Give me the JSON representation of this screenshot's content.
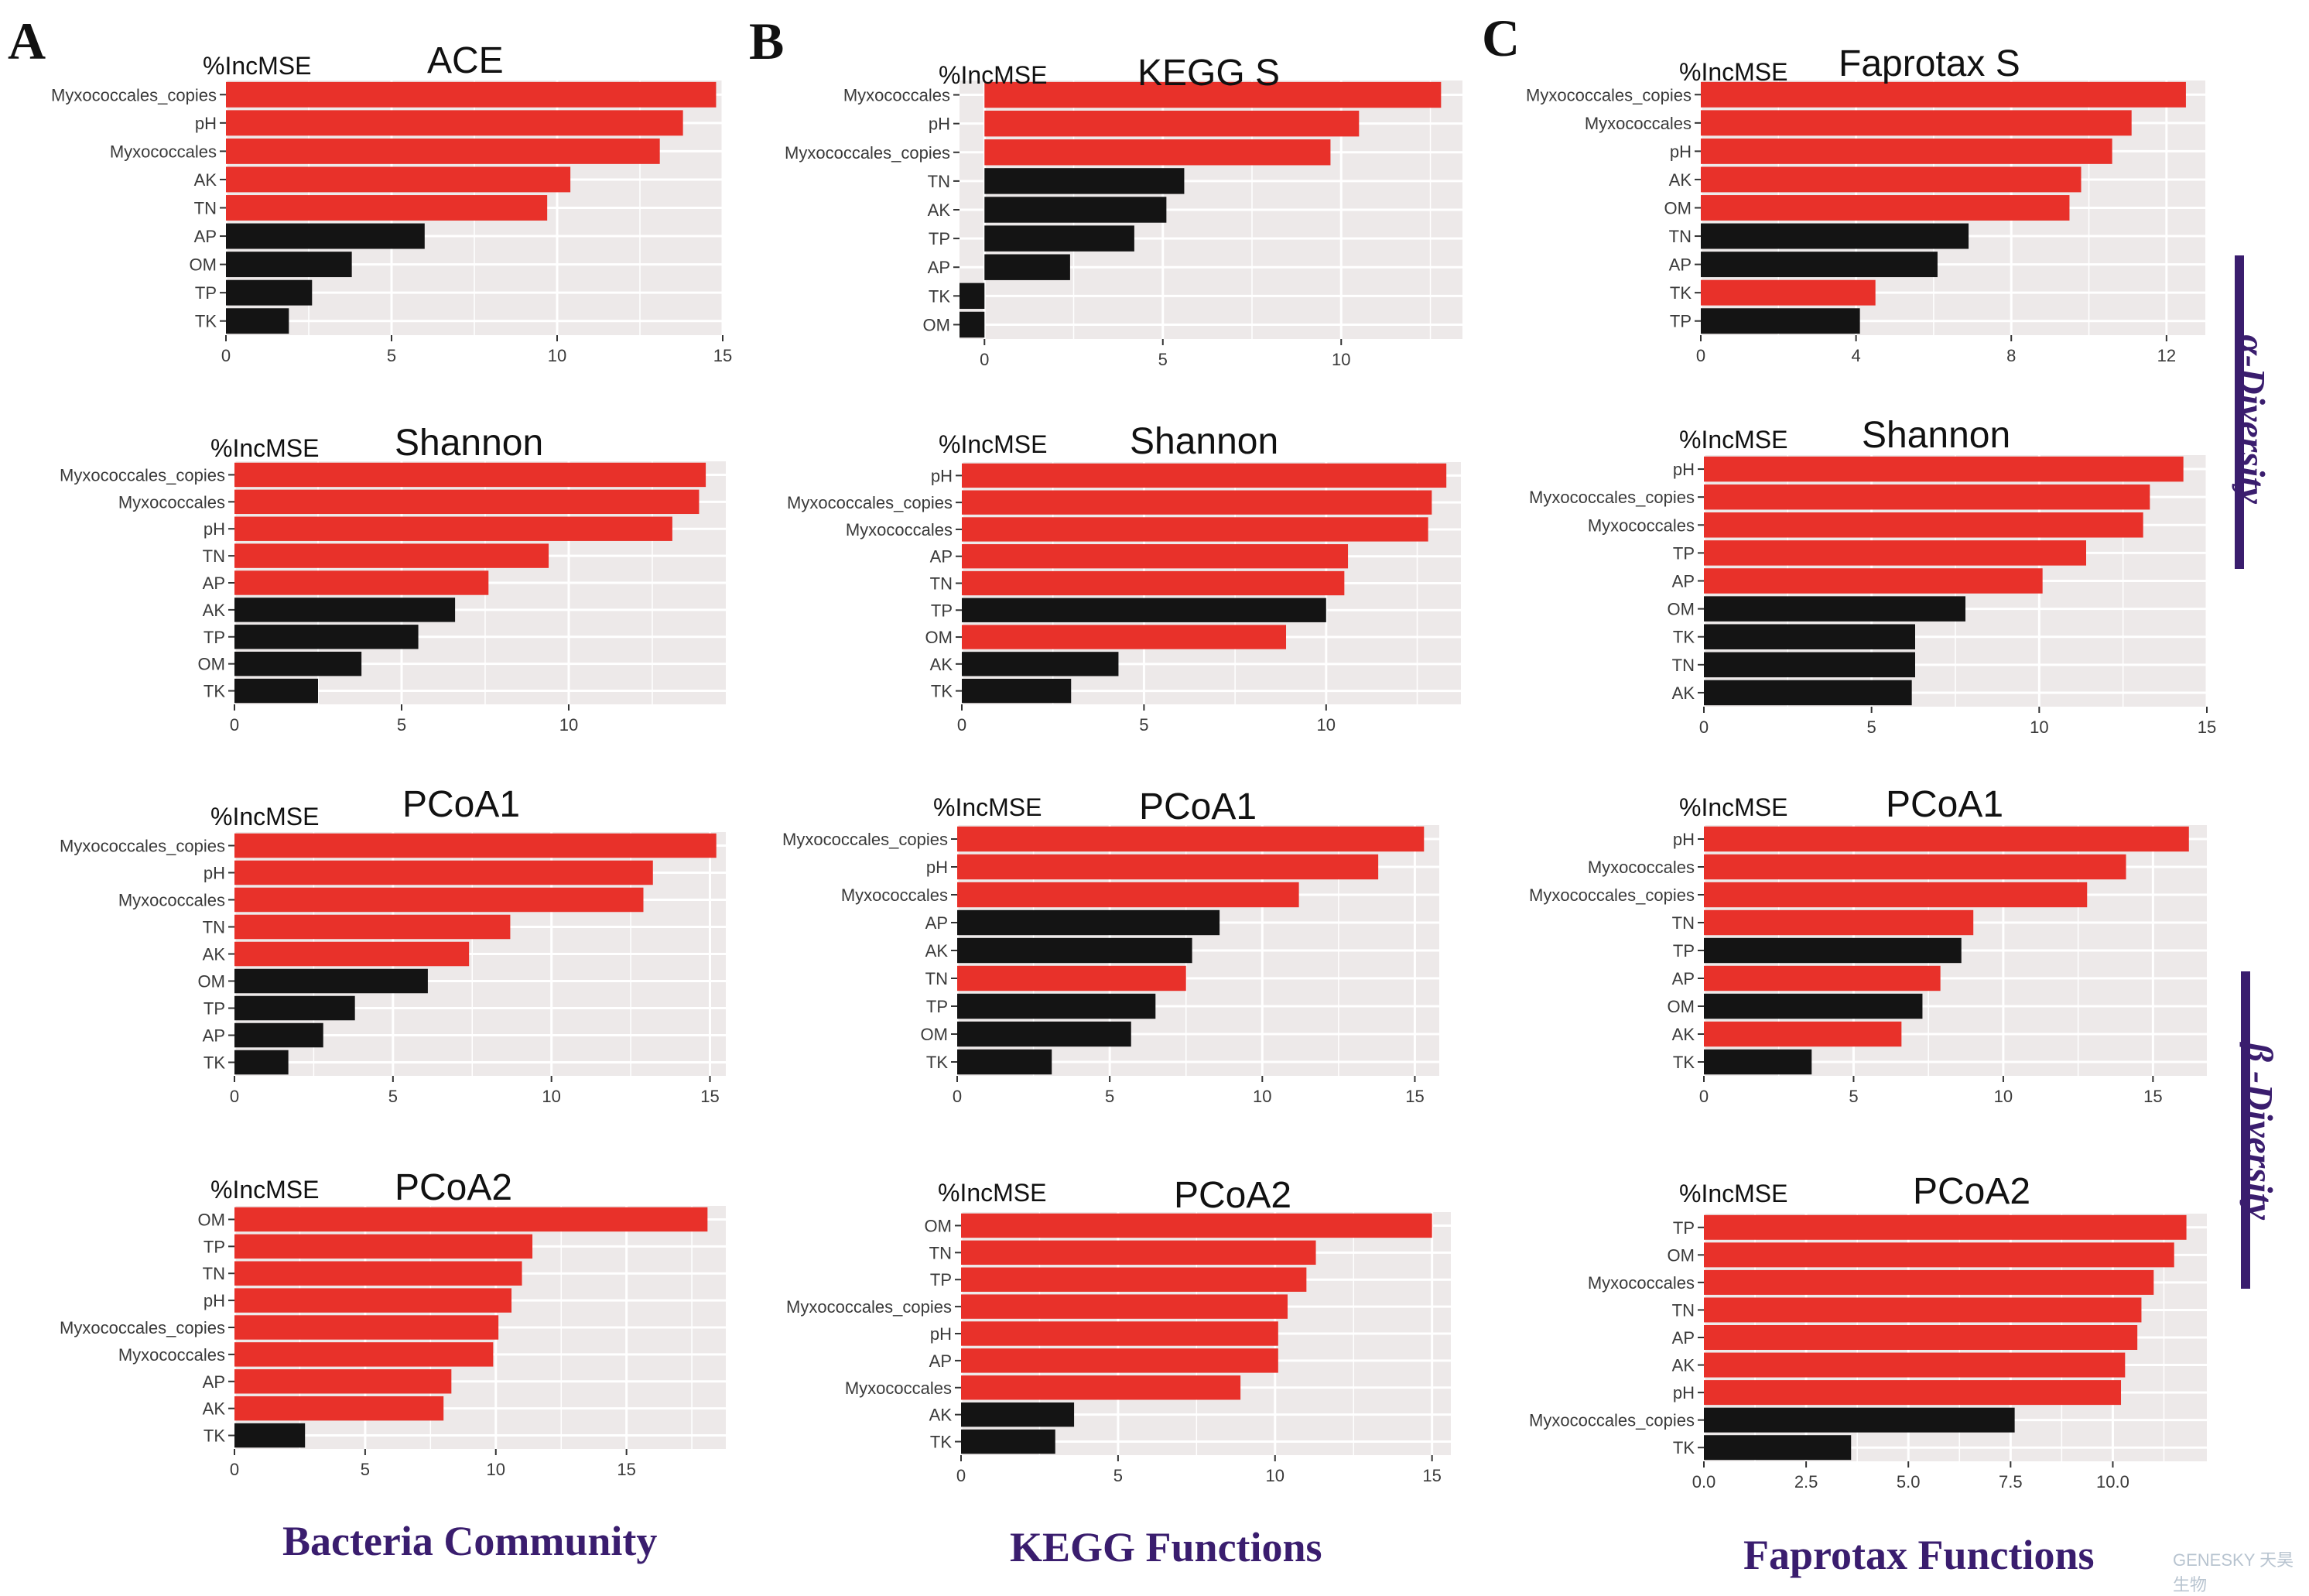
{
  "panel_letters": [
    "A",
    "B",
    "C"
  ],
  "column_titles": [
    "Bacteria Community",
    "KEGG Functions",
    "Faprotax Functions"
  ],
  "side_labels": [
    "α-Diversity",
    "β -Diversity"
  ],
  "watermark": "GENESKY 天昊生物",
  "colors": {
    "red": "#e8312a",
    "black": "#141414",
    "panel_bg": "#ede9e9",
    "grid": "#ffffff",
    "accent": "#3a1d6e"
  },
  "chart_data": [
    {
      "id": "A-ACE",
      "type": "bar",
      "orientation": "horizontal",
      "title": "ACE",
      "ylabel": "%IncMSE",
      "xlim": [
        0,
        15
      ],
      "xticks": [
        0,
        5,
        10,
        15
      ],
      "categories": [
        "Myxococcales_copies",
        "pH",
        "Myxococcales",
        "AK",
        "TN",
        "AP",
        "OM",
        "TP",
        "TK"
      ],
      "values": [
        14.8,
        13.8,
        13.1,
        10.4,
        9.7,
        6.0,
        3.8,
        2.6,
        1.9
      ],
      "significant": [
        true,
        true,
        true,
        true,
        true,
        false,
        false,
        false,
        false
      ]
    },
    {
      "id": "B-KEGG",
      "type": "bar",
      "orientation": "horizontal",
      "title": "KEGG S",
      "ylabel": "%IncMSE",
      "xlim": [
        -0.7,
        13.4
      ],
      "xticks": [
        0,
        5,
        10
      ],
      "categories": [
        "Myxococcales",
        "pH",
        "Myxococcales_copies",
        "TN",
        "AK",
        "TP",
        "AP",
        "TK",
        "OM"
      ],
      "values": [
        12.8,
        10.5,
        9.7,
        5.6,
        5.1,
        4.2,
        2.4,
        -0.7,
        -0.7
      ],
      "significant": [
        true,
        true,
        true,
        false,
        false,
        false,
        false,
        false,
        false
      ]
    },
    {
      "id": "C-Faprotax",
      "type": "bar",
      "orientation": "horizontal",
      "title": "Faprotax S",
      "ylabel": "%IncMSE",
      "xlim": [
        0,
        13
      ],
      "xticks": [
        0,
        4,
        8,
        12
      ],
      "categories": [
        "Myxococcales_copies",
        "Myxococcales",
        "pH",
        "AK",
        "OM",
        "TN",
        "AP",
        "TK",
        "TP"
      ],
      "values": [
        12.5,
        11.1,
        10.6,
        9.8,
        9.5,
        6.9,
        6.1,
        4.5,
        4.1
      ],
      "significant": [
        true,
        true,
        true,
        true,
        true,
        false,
        false,
        true,
        false
      ]
    },
    {
      "id": "A-Shannon",
      "type": "bar",
      "orientation": "horizontal",
      "title": "Shannon",
      "ylabel": "%IncMSE",
      "xlim": [
        0,
        14.7
      ],
      "xticks": [
        0,
        5,
        10
      ],
      "categories": [
        "Myxococcales_copies",
        "Myxococcales",
        "pH",
        "TN",
        "AP",
        "AK",
        "TP",
        "OM",
        "TK"
      ],
      "values": [
        14.1,
        13.9,
        13.1,
        9.4,
        7.6,
        6.6,
        5.5,
        3.8,
        2.5
      ],
      "significant": [
        true,
        true,
        true,
        true,
        true,
        false,
        false,
        false,
        false
      ]
    },
    {
      "id": "B-Shannon",
      "type": "bar",
      "orientation": "horizontal",
      "title": "Shannon",
      "ylabel": "%IncMSE",
      "xlim": [
        0,
        13.7
      ],
      "xticks": [
        0,
        5,
        10
      ],
      "categories": [
        "pH",
        "Myxococcales_copies",
        "Myxococcales",
        "AP",
        "TN",
        "TP",
        "OM",
        "AK",
        "TK"
      ],
      "values": [
        13.3,
        12.9,
        12.8,
        10.6,
        10.5,
        10.0,
        8.9,
        4.3,
        3.0
      ],
      "significant": [
        true,
        true,
        true,
        true,
        true,
        false,
        true,
        false,
        false
      ]
    },
    {
      "id": "C-Shannon",
      "type": "bar",
      "orientation": "horizontal",
      "title": "Shannon",
      "ylabel": "%IncMSE",
      "xlim": [
        0,
        15
      ],
      "xticks": [
        0,
        5,
        10,
        15
      ],
      "categories": [
        "pH",
        "Myxococcales_copies",
        "Myxococcales",
        "TP",
        "AP",
        "OM",
        "TK",
        "TN",
        "AK"
      ],
      "values": [
        14.3,
        13.3,
        13.1,
        11.4,
        10.1,
        7.8,
        6.3,
        6.3,
        6.2
      ],
      "significant": [
        true,
        true,
        true,
        true,
        true,
        false,
        false,
        false,
        false
      ]
    },
    {
      "id": "A-PCoA1",
      "type": "bar",
      "orientation": "horizontal",
      "title": "PCoA1",
      "ylabel": "%IncMSE",
      "xlim": [
        0,
        15.5
      ],
      "xticks": [
        0,
        5,
        10,
        15
      ],
      "categories": [
        "Myxococcales_copies",
        "pH",
        "Myxococcales",
        "TN",
        "AK",
        "OM",
        "TP",
        "AP",
        "TK"
      ],
      "values": [
        15.2,
        13.2,
        12.9,
        8.7,
        7.4,
        6.1,
        3.8,
        2.8,
        1.7
      ],
      "significant": [
        true,
        true,
        true,
        true,
        true,
        false,
        false,
        false,
        false
      ]
    },
    {
      "id": "B-PCoA1",
      "type": "bar",
      "orientation": "horizontal",
      "title": "PCoA1",
      "ylabel": "%IncMSE",
      "xlim": [
        0,
        15.8
      ],
      "xticks": [
        0,
        5,
        10,
        15
      ],
      "categories": [
        "Myxococcales_copies",
        "pH",
        "Myxococcales",
        "AP",
        "AK",
        "TN",
        "TP",
        "OM",
        "TK"
      ],
      "values": [
        15.3,
        13.8,
        11.2,
        8.6,
        7.7,
        7.5,
        6.5,
        5.7,
        3.1
      ],
      "significant": [
        true,
        true,
        true,
        false,
        false,
        true,
        false,
        false,
        false
      ]
    },
    {
      "id": "C-PCoA1",
      "type": "bar",
      "orientation": "horizontal",
      "title": "PCoA1",
      "ylabel": "%IncMSE",
      "xlim": [
        0,
        16.8
      ],
      "xticks": [
        0,
        5,
        10,
        15
      ],
      "categories": [
        "pH",
        "Myxococcales",
        "Myxococcales_copies",
        "TN",
        "TP",
        "AP",
        "OM",
        "AK",
        "TK"
      ],
      "values": [
        16.2,
        14.1,
        12.8,
        9.0,
        8.6,
        7.9,
        7.3,
        6.6,
        3.6
      ],
      "significant": [
        true,
        true,
        true,
        true,
        false,
        true,
        false,
        true,
        false
      ]
    },
    {
      "id": "A-PCoA2",
      "type": "bar",
      "orientation": "horizontal",
      "title": "PCoA2",
      "ylabel": "%IncMSE",
      "xlim": [
        0,
        18.8
      ],
      "xticks": [
        0,
        5,
        10,
        15
      ],
      "categories": [
        "OM",
        "TP",
        "TN",
        "pH",
        "Myxococcales_copies",
        "Myxococcales",
        "AP",
        "AK",
        "TK"
      ],
      "values": [
        18.1,
        11.4,
        11.0,
        10.6,
        10.1,
        9.9,
        8.3,
        8.0,
        2.7
      ],
      "significant": [
        true,
        true,
        true,
        true,
        true,
        true,
        true,
        true,
        false
      ]
    },
    {
      "id": "B-PCoA2",
      "type": "bar",
      "orientation": "horizontal",
      "title": "PCoA2",
      "ylabel": "%IncMSE",
      "xlim": [
        0,
        15.6
      ],
      "xticks": [
        0,
        5,
        10,
        15
      ],
      "categories": [
        "OM",
        "TN",
        "TP",
        "Myxococcales_copies",
        "pH",
        "AP",
        "Myxococcales",
        "AK",
        "TK"
      ],
      "values": [
        15.0,
        11.3,
        11.0,
        10.4,
        10.1,
        10.1,
        8.9,
        3.6,
        3.0
      ],
      "significant": [
        true,
        true,
        true,
        true,
        true,
        true,
        true,
        false,
        false
      ]
    },
    {
      "id": "C-PCoA2",
      "type": "bar",
      "orientation": "horizontal",
      "title": "PCoA2",
      "ylabel": "%IncMSE",
      "xlim": [
        0,
        12.3
      ],
      "xticks": [
        0.0,
        2.5,
        5.0,
        7.5,
        10.0
      ],
      "xtick_labels": [
        "0.0",
        "2.5",
        "5.0",
        "7.5",
        "10.0"
      ],
      "categories": [
        "TP",
        "OM",
        "Myxococcales",
        "TN",
        "AP",
        "AK",
        "pH",
        "Myxococcales_copies",
        "TK"
      ],
      "values": [
        11.8,
        11.5,
        11.0,
        10.7,
        10.6,
        10.3,
        10.2,
        7.6,
        3.6
      ],
      "significant": [
        true,
        true,
        true,
        true,
        true,
        true,
        true,
        false,
        false
      ]
    }
  ]
}
